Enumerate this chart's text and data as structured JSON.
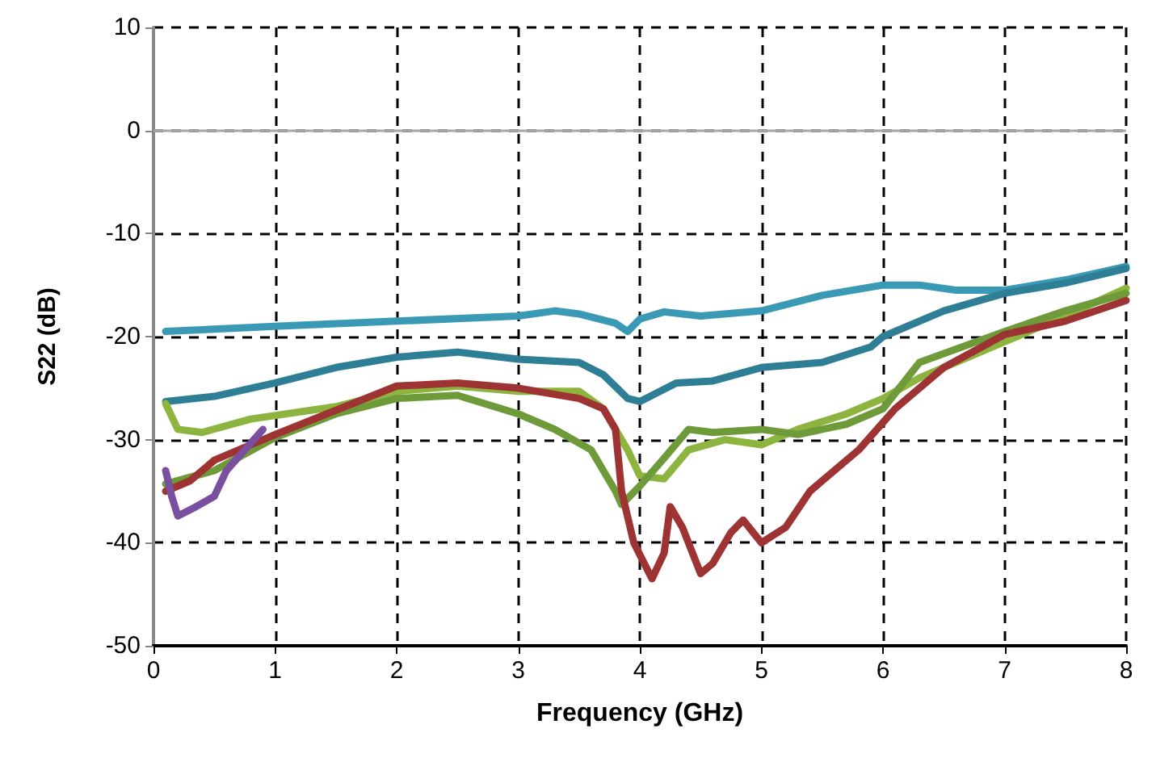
{
  "chart_data": {
    "type": "line",
    "xlabel": "Frequency (GHz)",
    "ylabel": "S22 (dB)",
    "xlim": [
      0,
      8
    ],
    "xticks": [
      0,
      1,
      2,
      3,
      4,
      5,
      6,
      7,
      8
    ],
    "ylim": [
      -50,
      10
    ],
    "yticks": [
      -50,
      -40,
      -30,
      -20,
      -10,
      0,
      10
    ],
    "grid": true,
    "line_style": "solid",
    "marker": "none",
    "ref_lines": [
      {
        "axis": "y",
        "value": 0,
        "color": "#a6a6a6"
      }
    ],
    "series": [
      {
        "color": "#3a9ab5",
        "x": [
          0.1,
          1,
          2,
          3,
          3.3,
          3.5,
          3.8,
          3.9,
          4.0,
          4.2,
          4.5,
          5,
          5.5,
          6,
          6.3,
          6.6,
          7,
          7.5,
          8
        ],
        "values": [
          -19.5,
          -19,
          -18.5,
          -18,
          -17.5,
          -17.8,
          -18.7,
          -19.5,
          -18.3,
          -17.6,
          -18,
          -17.5,
          -16,
          -15,
          -15,
          -15.5,
          -15.5,
          -14.5,
          -13.2
        ]
      },
      {
        "color": "#2e7f96",
        "x": [
          0.1,
          0.5,
          1,
          1.5,
          2,
          2.5,
          3,
          3.5,
          3.7,
          3.9,
          4.0,
          4.3,
          4.6,
          5,
          5.5,
          5.9,
          6,
          6.5,
          7,
          7.5,
          8
        ],
        "values": [
          -26.3,
          -25.8,
          -24.5,
          -23,
          -22,
          -21.5,
          -22.2,
          -22.5,
          -23.7,
          -26,
          -26.3,
          -24.5,
          -24.3,
          -23,
          -22.5,
          -21,
          -20,
          -17.5,
          -15.8,
          -14.8,
          -13.4
        ]
      },
      {
        "color": "#8db43e",
        "x": [
          0.1,
          0.2,
          0.4,
          0.8,
          1.5,
          2,
          2.5,
          3,
          3.5,
          3.7,
          3.9,
          4.0,
          4.2,
          4.4,
          4.7,
          5,
          5.3,
          5.7,
          6,
          6.3,
          7,
          7.5,
          8
        ],
        "values": [
          -26.5,
          -29,
          -29.3,
          -28,
          -26.8,
          -25.3,
          -24.8,
          -25.3,
          -25.3,
          -27,
          -31,
          -33.5,
          -33.8,
          -31,
          -30,
          -30.5,
          -29,
          -27.5,
          -26,
          -24,
          -20.5,
          -18,
          -15.3
        ]
      },
      {
        "color": "#6e9a3a",
        "x": [
          0.1,
          0.5,
          1,
          1.5,
          2,
          2.5,
          3,
          3.3,
          3.6,
          3.8,
          3.85,
          4.0,
          4.2,
          4.4,
          4.6,
          5,
          5.3,
          5.7,
          6,
          6.3,
          7,
          7.5,
          8
        ],
        "values": [
          -34.3,
          -33,
          -29.8,
          -27.5,
          -26,
          -25.7,
          -27.5,
          -29,
          -31,
          -35,
          -36.3,
          -34.5,
          -31.8,
          -29,
          -29.3,
          -29,
          -29.5,
          -28.5,
          -27,
          -22.5,
          -19.5,
          -17.5,
          -15.8
        ]
      },
      {
        "color": "#9e3333",
        "x": [
          0.1,
          0.3,
          0.5,
          1,
          2,
          2.5,
          3,
          3.5,
          3.7,
          3.8,
          3.85,
          3.95,
          4.1,
          4.2,
          4.25,
          4.35,
          4.5,
          4.6,
          4.75,
          4.85,
          5.0,
          5.2,
          5.4,
          5.8,
          6.1,
          6.5,
          7,
          7.5,
          8
        ],
        "values": [
          -35,
          -34,
          -32,
          -29.5,
          -24.8,
          -24.5,
          -25,
          -26,
          -27,
          -29,
          -35,
          -40,
          -43.5,
          -41,
          -36.5,
          -38.5,
          -43,
          -42,
          -39,
          -37.8,
          -40,
          -38.5,
          -35,
          -31,
          -27,
          -23,
          -19.8,
          -18.5,
          -16.5
        ]
      },
      {
        "color": "#7b4fa0",
        "x": [
          0.1,
          0.15,
          0.2,
          0.35,
          0.5,
          0.6,
          0.9
        ],
        "values": [
          -33,
          -35.5,
          -37.4,
          -36.5,
          -35.5,
          -33,
          -29
        ]
      }
    ]
  }
}
